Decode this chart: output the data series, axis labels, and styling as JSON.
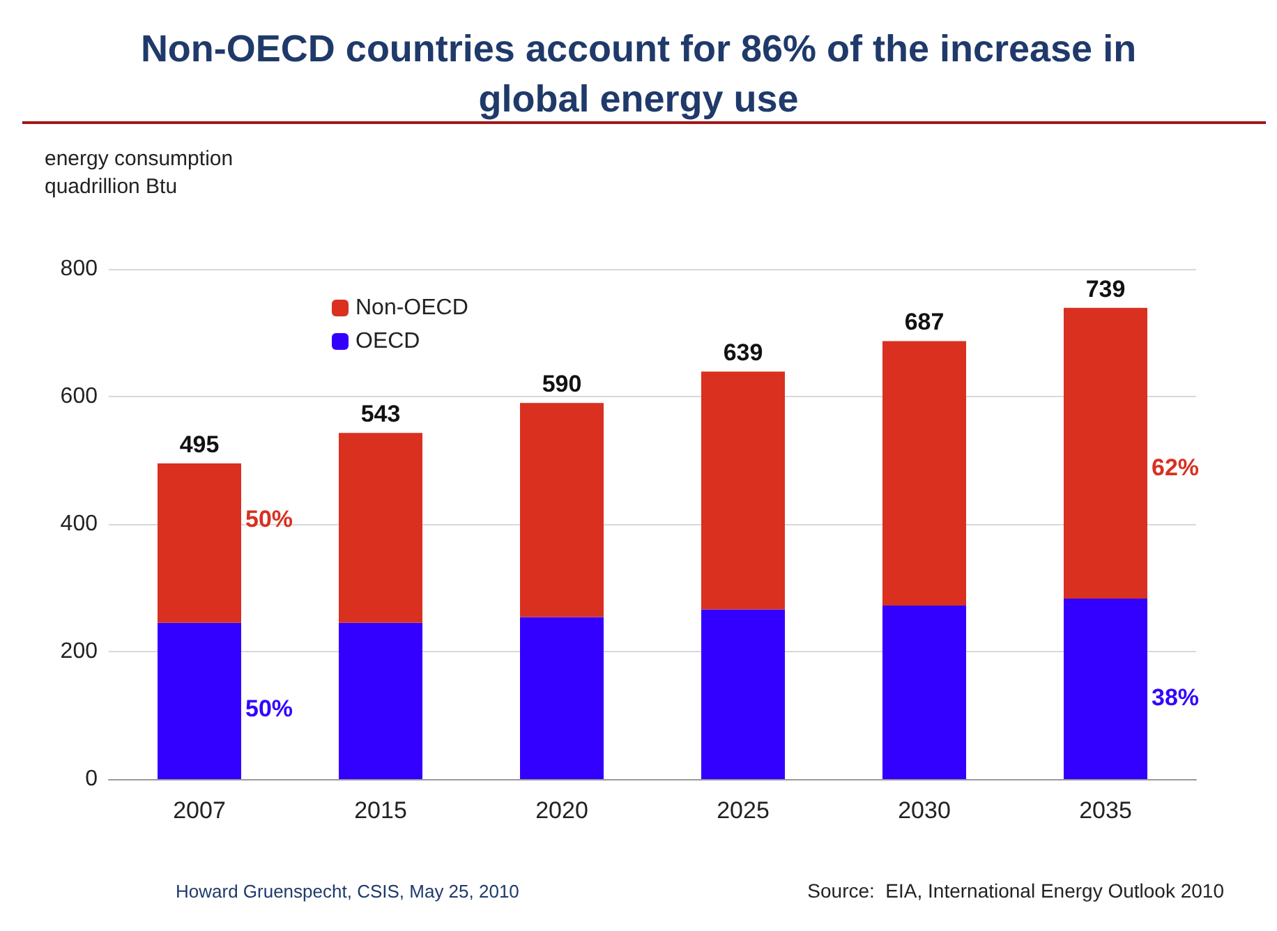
{
  "chart_data": {
    "type": "bar",
    "title": "Non-OECD countries account for 86% of the increase in\nglobal energy use",
    "ylabel": "energy consumption\nquadrillion Btu",
    "categories": [
      "2007",
      "2015",
      "2020",
      "2025",
      "2030",
      "2035"
    ],
    "stacked": true,
    "series": [
      {
        "name": "OECD",
        "color": "#3300ff",
        "values": [
          245,
          245,
          254,
          266,
          272,
          283
        ]
      },
      {
        "name": "Non-OECD",
        "color": "#d93020",
        "values": [
          250,
          298,
          336,
          373,
          415,
          456
        ]
      }
    ],
    "totals": [
      "495",
      "543",
      "590",
      "639",
      "687",
      "739"
    ],
    "ylim": [
      0,
      800
    ],
    "yticks": [
      0,
      200,
      400,
      600,
      800
    ],
    "grid": "y",
    "legend": "top left",
    "annotations": [
      "50%",
      "50%",
      "62%",
      "38%",
      "Howard Gruenspecht, CSIS, May 25, 2010",
      "Source:  EIA, International Energy Outlook 2010"
    ]
  }
}
